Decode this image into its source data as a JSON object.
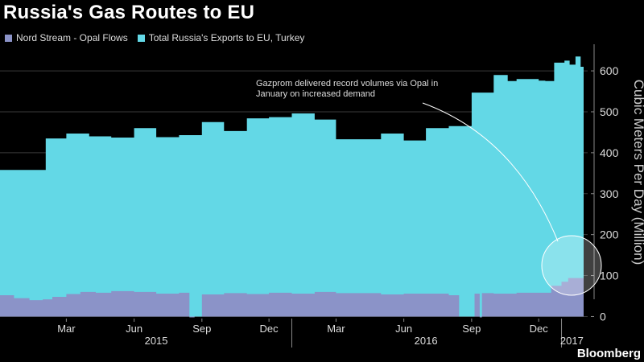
{
  "header": {
    "title": "Russia's Gas Routes to EU",
    "source": "Bloomberg"
  },
  "legend": {
    "items": [
      {
        "label": "Nord Stream - Opal Flows",
        "color": "#8b93c8"
      },
      {
        "label": "Total Russia's Exports to EU, Turkey",
        "color": "#63d8e6"
      }
    ]
  },
  "annotation": {
    "text": "Gazprom delivered record volumes via Opal in January on increased demand"
  },
  "chart_data": {
    "type": "area",
    "ylabel": "Cubic Meters Per Day (Million)",
    "ylim": [
      -5,
      665
    ],
    "yticks": [
      0,
      100,
      200,
      300,
      400,
      500,
      600
    ],
    "xlim": [
      "2014-12-01",
      "2017-01-31"
    ],
    "month_ticks": [
      {
        "date": "2015-03-01",
        "label": "Mar"
      },
      {
        "date": "2015-06-01",
        "label": "Jun"
      },
      {
        "date": "2015-09-01",
        "label": "Sep"
      },
      {
        "date": "2015-12-01",
        "label": "Dec"
      },
      {
        "date": "2016-03-01",
        "label": "Mar"
      },
      {
        "date": "2016-06-01",
        "label": "Jun"
      },
      {
        "date": "2016-09-01",
        "label": "Sep"
      },
      {
        "date": "2016-12-01",
        "label": "Dec"
      }
    ],
    "year_labels": [
      {
        "date": "2015-07-01",
        "label": "2015"
      },
      {
        "date": "2016-07-01",
        "label": "2016"
      },
      {
        "date": "2017-01-15",
        "label": "2017"
      }
    ],
    "year_dividers": [
      "2016-01-01",
      "2017-01-01"
    ],
    "series": [
      {
        "name": "Total Russia's Exports to EU, Turkey",
        "color": "#63d8e6",
        "step": true,
        "dates": [
          "2014-12-01",
          "2015-02-01",
          "2015-03-01",
          "2015-04-01",
          "2015-05-01",
          "2015-06-01",
          "2015-07-01",
          "2015-08-01",
          "2015-09-01",
          "2015-10-01",
          "2015-11-01",
          "2015-12-01",
          "2016-01-01",
          "2016-02-01",
          "2016-03-01",
          "2016-04-01",
          "2016-05-01",
          "2016-06-01",
          "2016-07-01",
          "2016-08-01",
          "2016-09-01",
          "2016-10-01",
          "2016-10-20",
          "2016-11-01",
          "2016-12-01",
          "2016-12-10",
          "2016-12-22",
          "2017-01-05",
          "2017-01-12",
          "2017-01-20",
          "2017-01-27",
          "2017-01-31"
        ],
        "values": [
          358,
          435,
          447,
          440,
          437,
          460,
          438,
          443,
          475,
          453,
          484,
          487,
          496,
          481,
          433,
          433,
          447,
          430,
          460,
          465,
          547,
          590,
          575,
          580,
          576,
          575,
          620,
          625,
          615,
          635,
          610,
          610
        ]
      },
      {
        "name": "Nord Stream - Opal Flows",
        "color": "#8b93c8",
        "step": true,
        "dates": [
          "2014-12-01",
          "2014-12-20",
          "2015-01-10",
          "2015-01-28",
          "2015-02-10",
          "2015-03-01",
          "2015-03-20",
          "2015-04-10",
          "2015-05-01",
          "2015-06-01",
          "2015-07-01",
          "2015-08-01",
          "2015-08-15",
          "2015-08-22",
          "2015-09-01",
          "2015-10-01",
          "2015-11-01",
          "2015-12-01",
          "2016-01-01",
          "2016-02-01",
          "2016-03-01",
          "2016-04-01",
          "2016-05-01",
          "2016-06-01",
          "2016-07-01",
          "2016-08-01",
          "2016-08-15",
          "2016-08-28",
          "2016-09-05",
          "2016-09-12",
          "2016-09-15",
          "2016-10-01",
          "2016-11-01",
          "2016-12-01",
          "2016-12-18",
          "2017-01-01",
          "2017-01-10",
          "2017-01-31"
        ],
        "values": [
          52,
          45,
          40,
          42,
          48,
          55,
          60,
          58,
          62,
          60,
          56,
          58,
          -2,
          0,
          54,
          57,
          55,
          58,
          56,
          60,
          57,
          57,
          54,
          56,
          56,
          52,
          0,
          0,
          56,
          -2,
          57,
          56,
          58,
          58,
          75,
          85,
          94,
          95
        ]
      }
    ]
  }
}
